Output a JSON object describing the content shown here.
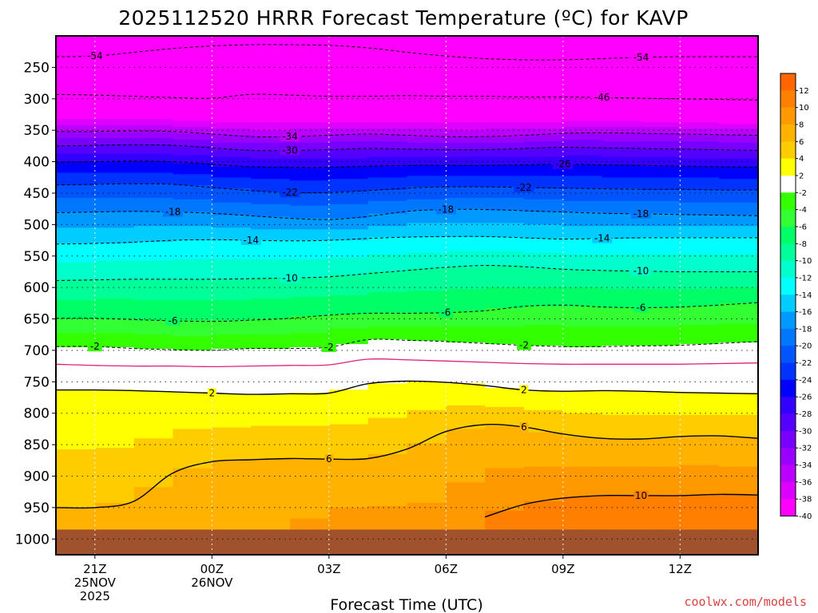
{
  "chart_data": {
    "type": "heatmap",
    "title": "2025112520 HRRR Forecast Temperature (ºC) for KAVP",
    "xlabel": "Forecast Time (UTC)",
    "ylabel": "",
    "credit": "coolwx.com/models",
    "x_ticks": [
      {
        "hour": 1,
        "lines": [
          "21Z",
          "25NOV",
          "2025"
        ]
      },
      {
        "hour": 4,
        "lines": [
          "00Z",
          "26NOV"
        ]
      },
      {
        "hour": 7,
        "lines": [
          "03Z"
        ]
      },
      {
        "hour": 10,
        "lines": [
          "06Z"
        ]
      },
      {
        "hour": 13,
        "lines": [
          "09Z"
        ]
      },
      {
        "hour": 16,
        "lines": [
          "12Z"
        ]
      }
    ],
    "xlim": [
      0,
      18
    ],
    "y_ticks": [
      250,
      300,
      350,
      400,
      450,
      500,
      550,
      600,
      650,
      700,
      750,
      800,
      850,
      900,
      950,
      1000
    ],
    "ylim_hpa": [
      200,
      1025
    ],
    "ground_hpa": 985,
    "colorbar": {
      "labels": [
        "12",
        "10",
        "8",
        "6",
        "4",
        "2",
        "-2",
        "-4",
        "-6",
        "-8",
        "-10",
        "-12",
        "-14",
        "-16",
        "-18",
        "-20",
        "-22",
        "-24",
        "-26",
        "-28",
        "-30",
        "-32",
        "-34",
        "-36",
        "-38",
        "-40"
      ],
      "colors": [
        "#ff6600",
        "#ff7f00",
        "#ff9900",
        "#ffb300",
        "#ffcc00",
        "#ffff00",
        "#ffffff",
        "#33ff00",
        "#33ff33",
        "#00ff66",
        "#00ff99",
        "#00ffcc",
        "#00ffff",
        "#00ccff",
        "#0099ff",
        "#0077ff",
        "#0055ff",
        "#0033ff",
        "#0000ff",
        "#3300ff",
        "#5500ff",
        "#7700ff",
        "#9900ff",
        "#bb00ff",
        "#dd00ff",
        "#ff00ff"
      ]
    },
    "series": [
      {
        "name": "-54",
        "label_positions": [
          1,
          15
        ],
        "pressure": [
          233,
          232,
          226,
          220,
          216,
          214,
          214,
          215,
          219,
          226,
          232,
          236,
          238,
          238,
          236,
          234,
          233,
          233,
          233
        ]
      },
      {
        "name": "-46",
        "label_positions": [
          14
        ],
        "pressure": [
          293,
          294,
          296,
          298,
          299,
          293,
          294,
          296,
          296,
          295,
          296,
          296,
          297,
          297,
          298,
          299,
          300,
          301,
          302
        ]
      },
      {
        "name": "-34",
        "label_positions": [
          6
        ],
        "pressure": [
          352,
          352,
          351,
          352,
          356,
          360,
          360,
          358,
          356,
          358,
          360,
          360,
          358,
          355,
          354,
          355,
          356,
          357,
          358
        ]
      },
      {
        "name": "-30",
        "label_positions": [
          6
        ],
        "pressure": [
          375,
          374,
          373,
          374,
          378,
          382,
          382,
          381,
          379,
          380,
          381,
          381,
          379,
          377,
          378,
          379,
          380,
          381,
          382
        ]
      },
      {
        "name": "-26",
        "label_positions": [
          13
        ],
        "pressure": [
          401,
          400,
          399,
          400,
          404,
          408,
          409,
          409,
          407,
          406,
          406,
          406,
          405,
          404,
          405,
          406,
          407,
          408,
          409
        ]
      },
      {
        "name": "-22",
        "label_positions": [
          6,
          12
        ],
        "pressure": [
          437,
          436,
          435,
          436,
          441,
          446,
          449,
          449,
          446,
          442,
          440,
          440,
          441,
          442,
          443,
          444,
          444,
          445,
          445
        ]
      },
      {
        "name": "-18",
        "label_positions": [
          3,
          10,
          15
        ],
        "pressure": [
          481,
          480,
          479,
          480,
          482,
          486,
          490,
          492,
          487,
          479,
          476,
          476,
          478,
          480,
          482,
          483,
          484,
          485,
          486
        ]
      },
      {
        "name": "-14",
        "label_positions": [
          5,
          14
        ],
        "pressure": [
          531,
          530,
          528,
          525,
          524,
          525,
          526,
          525,
          522,
          520,
          519,
          519,
          521,
          523,
          522,
          521,
          521,
          521,
          521
        ]
      },
      {
        "name": "-10",
        "label_positions": [
          6,
          15
        ],
        "pressure": [
          589,
          588,
          587,
          587,
          587,
          586,
          585,
          583,
          578,
          573,
          568,
          565,
          567,
          571,
          573,
          574,
          575,
          575,
          575
        ]
      },
      {
        "name": "-6",
        "label_positions": [
          3,
          10,
          15
        ],
        "pressure": [
          649,
          649,
          651,
          653,
          654,
          652,
          649,
          644,
          641,
          641,
          640,
          637,
          630,
          628,
          631,
          632,
          631,
          628,
          624
        ]
      },
      {
        "name": "-2",
        "label_positions": [
          1,
          7,
          12
        ],
        "pressure": [
          694,
          694,
          697,
          699,
          700,
          697,
          697,
          695,
          683,
          684,
          686,
          689,
          692,
          694,
          694,
          693,
          692,
          689,
          686
        ]
      },
      {
        "name": "0",
        "label_positions": [],
        "pressure": [
          722,
          724,
          725,
          725,
          726,
          725,
          724,
          723,
          714,
          715,
          717,
          719,
          721,
          722,
          722,
          722,
          722,
          721,
          720
        ]
      },
      {
        "name": "2",
        "label_positions": [
          4,
          12
        ],
        "pressure": [
          763,
          763,
          764,
          766,
          768,
          770,
          769,
          768,
          753,
          749,
          751,
          756,
          763,
          765,
          764,
          765,
          767,
          768,
          769
        ]
      },
      {
        "name": "6",
        "label_positions": [
          7,
          12
        ],
        "pressure": [
          950,
          950,
          940,
          895,
          877,
          874,
          872,
          873,
          872,
          857,
          829,
          818,
          822,
          833,
          840,
          841,
          837,
          836,
          840
        ]
      },
      {
        "name": "10",
        "label_positions": [
          15
        ],
        "pressure": [
          null,
          null,
          null,
          null,
          null,
          null,
          null,
          null,
          null,
          null,
          null,
          965,
          945,
          935,
          931,
          931,
          931,
          929,
          930
        ]
      }
    ]
  }
}
